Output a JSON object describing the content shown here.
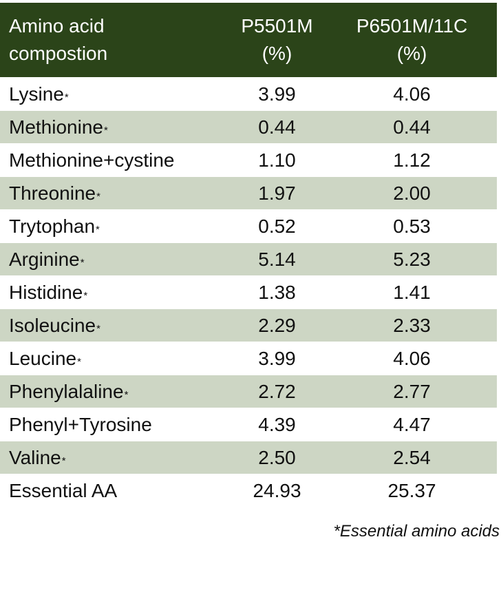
{
  "table": {
    "headers": {
      "col1_line1": "Amino acid",
      "col1_line2": "compostion",
      "col2_line1": "P5501M",
      "col2_line2": "(%)",
      "col3_line1": "P6501M/11C",
      "col3_line2": "(%)"
    },
    "rows": [
      {
        "name": "Lysine",
        "mark": "*",
        "p5501m": "3.99",
        "p6501m": "4.06"
      },
      {
        "name": "Methionine",
        "mark": "*",
        "p5501m": "0.44",
        "p6501m": "0.44"
      },
      {
        "name": "Methionine+cystine",
        "mark": "",
        "p5501m": "1.10",
        "p6501m": "1.12"
      },
      {
        "name": "Threonine",
        "mark": "*",
        "p5501m": "1.97",
        "p6501m": "2.00"
      },
      {
        "name": "Trytophan",
        "mark": "*",
        "p5501m": "0.52",
        "p6501m": "0.53"
      },
      {
        "name": "Arginine",
        "mark": "*",
        "p5501m": "5.14",
        "p6501m": "5.23"
      },
      {
        "name": "Histidine",
        "mark": "*",
        "p5501m": "1.38",
        "p6501m": "1.41"
      },
      {
        "name": "Isoleucine",
        "mark": "*",
        "p5501m": "2.29",
        "p6501m": "2.33"
      },
      {
        "name": "Leucine",
        "mark": "*",
        "p5501m": "3.99",
        "p6501m": "4.06"
      },
      {
        "name": "Phenylalaline",
        "mark": "*",
        "p5501m": "2.72",
        "p6501m": "2.77"
      },
      {
        "name": "Phenyl+Tyrosine",
        "mark": "",
        "p5501m": "4.39",
        "p6501m": "4.47"
      },
      {
        "name": "Valine",
        "mark": "*",
        "p5501m": "2.50",
        "p6501m": "2.54"
      },
      {
        "name": "Essential AA",
        "mark": "",
        "p5501m": "24.93",
        "p6501m": "25.37"
      }
    ]
  },
  "footnote": "*Essential amino acids",
  "colors": {
    "header_bg": "#2b4419",
    "header_text": "#ffffff",
    "shaded_row_bg": "#cdd6c4",
    "plain_row_bg": "#ffffff"
  }
}
